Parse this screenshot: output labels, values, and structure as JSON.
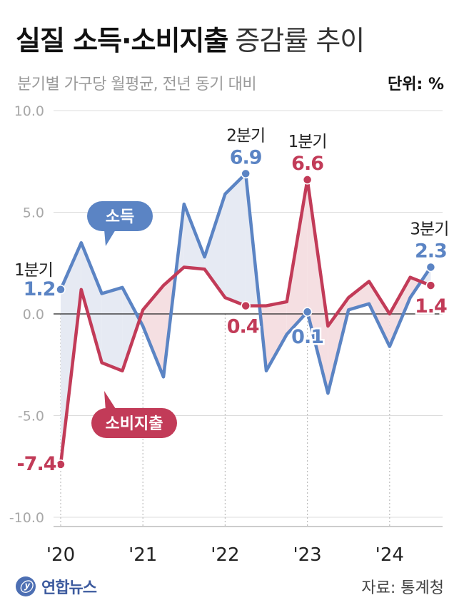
{
  "title": {
    "main": "실질 소득·소비지출",
    "sub": "증감률 추이"
  },
  "subtitle": "분기별 가구당 월평균, 전년 동기 대비",
  "unit": "단위: %",
  "footer": {
    "logo_text": "연합뉴스",
    "source": "자료: 통계청"
  },
  "colors": {
    "income": "#5b84c4",
    "spending": "#c23b58",
    "income_fill": "#e6eaf3",
    "spending_fill": "#f5dfe2",
    "grid": "#dcdcdc",
    "axis": "#222222"
  },
  "chart_data": {
    "type": "line",
    "ylim": [
      -10,
      10
    ],
    "yticks": [
      "10.0",
      "5.0",
      "0.0",
      "-5.0",
      "-10.0"
    ],
    "x_labels": [
      "'20",
      "'21",
      "'22",
      "'23",
      "'24"
    ],
    "quarters": [
      "2020Q1",
      "2020Q2",
      "2020Q3",
      "2020Q4",
      "2021Q1",
      "2021Q2",
      "2021Q3",
      "2021Q4",
      "2022Q1",
      "2022Q2",
      "2022Q3",
      "2022Q4",
      "2023Q1",
      "2023Q2",
      "2023Q3",
      "2023Q4",
      "2024Q1",
      "2024Q2",
      "2024Q3"
    ],
    "series": [
      {
        "name": "소득",
        "values": [
          1.2,
          3.5,
          1.0,
          1.3,
          -0.6,
          -3.1,
          5.4,
          2.8,
          5.9,
          6.9,
          -2.8,
          -1.0,
          0.1,
          -3.9,
          0.2,
          0.5,
          -1.6,
          0.8,
          2.3
        ]
      },
      {
        "name": "소비지출",
        "values": [
          -7.4,
          1.2,
          -2.4,
          -2.8,
          0.2,
          1.4,
          2.3,
          2.2,
          0.8,
          0.4,
          0.4,
          0.6,
          6.6,
          -0.6,
          0.8,
          1.6,
          0.0,
          1.8,
          1.4
        ]
      }
    ],
    "annotations": [
      {
        "series": 0,
        "index": 0,
        "quarter_label": "1분기",
        "value_label": "1.2"
      },
      {
        "series": 1,
        "index": 0,
        "quarter_label": "",
        "value_label": "-7.4"
      },
      {
        "series": 0,
        "index": 9,
        "quarter_label": "2분기",
        "value_label": "6.9"
      },
      {
        "series": 1,
        "index": 9,
        "quarter_label": "",
        "value_label": "0.4"
      },
      {
        "series": 0,
        "index": 12,
        "quarter_label": "",
        "value_label": "0.1"
      },
      {
        "series": 1,
        "index": 12,
        "quarter_label": "1분기",
        "value_label": "6.6"
      },
      {
        "series": 0,
        "index": 18,
        "quarter_label": "3분기",
        "value_label": "2.3"
      },
      {
        "series": 1,
        "index": 18,
        "quarter_label": "",
        "value_label": "1.4"
      }
    ]
  }
}
